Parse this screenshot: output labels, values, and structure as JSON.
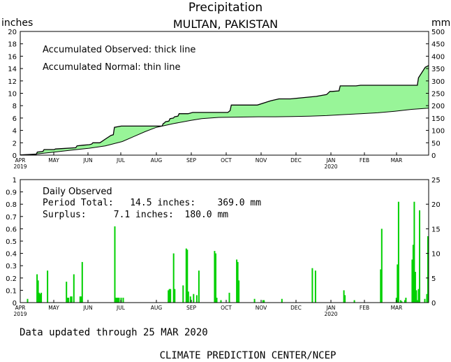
{
  "header": {
    "title": "Precipitation",
    "subtitle": "MULTAN, PAKISTAN",
    "left_unit": "inches",
    "right_unit": "mm"
  },
  "chart_data": [
    {
      "type": "area",
      "panel": "accumulated",
      "annotations": [
        "Accumulated Observed: thick line",
        "Accumulated Normal: thin line"
      ],
      "x_ticks": [
        "APR",
        "MAY",
        "JUN",
        "JUL",
        "AUG",
        "SEP",
        "OCT",
        "NOV",
        "DEC",
        "JAN",
        "FEB",
        "MAR"
      ],
      "x_year_labels": {
        "APR": "2019",
        "JAN": "2020"
      },
      "x_range_days": [
        0,
        360
      ],
      "y_left": {
        "label": "inches",
        "range": [
          0,
          20
        ],
        "ticks": [
          0,
          2,
          4,
          6,
          8,
          10,
          12,
          14,
          16,
          18,
          20
        ]
      },
      "y_right": {
        "label": "mm",
        "range": [
          0,
          500
        ],
        "ticks": [
          0,
          50,
          100,
          150,
          200,
          250,
          300,
          350,
          400,
          450,
          500
        ]
      },
      "fill_color": "#98f598",
      "series": [
        {
          "role": "observed",
          "style": "thick",
          "x": [
            0,
            14,
            15,
            20,
            21,
            30,
            31,
            49,
            50,
            55,
            61,
            63,
            64,
            70,
            71,
            75,
            80,
            82,
            83,
            89,
            97,
            125,
            126,
            127,
            128,
            131,
            132,
            135,
            136,
            139,
            140,
            148,
            152,
            183,
            185,
            186,
            194,
            209,
            221,
            228,
            238,
            261,
            270,
            273,
            275,
            281,
            282,
            288,
            289,
            296,
            300,
            350,
            351,
            357,
            359,
            360
          ],
          "y": [
            0.05,
            0.1,
            0.5,
            0.6,
            0.9,
            0.9,
            1.0,
            1.2,
            1.5,
            1.6,
            1.7,
            1.8,
            2.0,
            2.0,
            2.1,
            2.6,
            3.2,
            3.3,
            4.5,
            4.7,
            4.7,
            4.7,
            5.1,
            5.2,
            5.4,
            5.5,
            5.9,
            6.0,
            6.2,
            6.3,
            6.7,
            6.7,
            6.9,
            6.9,
            7.2,
            8.1,
            8.1,
            8.1,
            8.8,
            9.1,
            9.1,
            9.5,
            9.8,
            10.3,
            10.3,
            10.4,
            11.2,
            11.2,
            11.2,
            11.2,
            11.3,
            11.3,
            12.5,
            14.2,
            14.4,
            14.5
          ]
        },
        {
          "role": "normal",
          "style": "thin",
          "x": [
            0,
            15,
            30,
            45,
            60,
            75,
            90,
            100,
            110,
            120,
            135,
            150,
            160,
            175,
            190,
            210,
            225,
            240,
            255,
            270,
            285,
            300,
            315,
            330,
            345,
            360
          ],
          "y": [
            0.05,
            0.2,
            0.5,
            0.8,
            1.1,
            1.5,
            2.2,
            3.0,
            3.8,
            4.5,
            5.1,
            5.6,
            5.9,
            6.1,
            6.15,
            6.2,
            6.2,
            6.25,
            6.3,
            6.4,
            6.55,
            6.7,
            6.85,
            7.1,
            7.4,
            7.6
          ]
        }
      ]
    },
    {
      "type": "bar",
      "panel": "daily",
      "annotations": [
        "Daily Observed",
        "Period Total:   14.5 inches:    369.0 mm",
        "Surplus:     7.1 inches:  180.0 mm"
      ],
      "x_ticks": [
        "APR",
        "MAY",
        "JUN",
        "JUL",
        "AUG",
        "SEP",
        "OCT",
        "NOV",
        "DEC",
        "JAN",
        "FEB",
        "MAR"
      ],
      "x_year_labels": {
        "APR": "2019",
        "JAN": "2020"
      },
      "y_left": {
        "range": [
          0,
          1
        ],
        "ticks": [
          0,
          0.1,
          0.2,
          0.3,
          0.4,
          0.5,
          0.6,
          0.7,
          0.8,
          0.9,
          1
        ]
      },
      "y_right": {
        "range": [
          0,
          25
        ],
        "ticks": [
          0,
          5,
          10,
          15,
          20,
          25
        ]
      },
      "bar_color": "#00d000",
      "day": [
        5,
        14,
        15,
        16,
        17,
        18,
        24,
        42,
        43,
        44,
        46,
        47,
        49,
        55,
        56,
        57,
        88,
        89,
        90,
        91,
        92,
        94,
        96,
        139,
        140,
        141,
        144,
        145,
        153,
        156,
        157,
        158,
        160,
        163,
        166,
        168,
        183,
        184,
        185,
        189,
        197,
        204,
        205,
        206,
        221,
        229,
        230,
        247,
        276,
        279,
        306,
        307,
        316,
        341,
        342,
        356,
        357,
        358,
        360,
        361,
        364,
        365,
        371,
        372,
        373,
        374,
        375,
        376,
        377,
        378,
        383,
        385,
        386
      ],
      "values": [
        0.03,
        0.23,
        0.18,
        0.08,
        0.07,
        0.08,
        0.26,
        0.17,
        0.04,
        0.04,
        0.05,
        0.05,
        0.23,
        0.05,
        0.05,
        0.33,
        0.62,
        0.04,
        0.04,
        0.04,
        0.04,
        0.04,
        0.04,
        0.1,
        0.11,
        0.11,
        0.4,
        0.11,
        0.14,
        0.44,
        0.43,
        0.09,
        0.05,
        0.07,
        0.06,
        0.26,
        0.42,
        0.4,
        0.04,
        0.02,
        0.08,
        0.35,
        0.33,
        0.18,
        0.03,
        0.02,
        0.02,
        0.03,
        0.28,
        0.26,
        0.1,
        0.06,
        0.02,
        0.27,
        0.6,
        0.04,
        0.31,
        0.82,
        0.02,
        0.01,
        0.02,
        0.04,
        0.35,
        0.47,
        0.82,
        0.25,
        0.1,
        0.02,
        0.11,
        0.75,
        0.03,
        0.07,
        0.54
      ]
    }
  ],
  "footer": {
    "updated": "Data updated through 25 MAR 2020",
    "credit": "CLIMATE PREDICTION CENTER/NCEP"
  }
}
